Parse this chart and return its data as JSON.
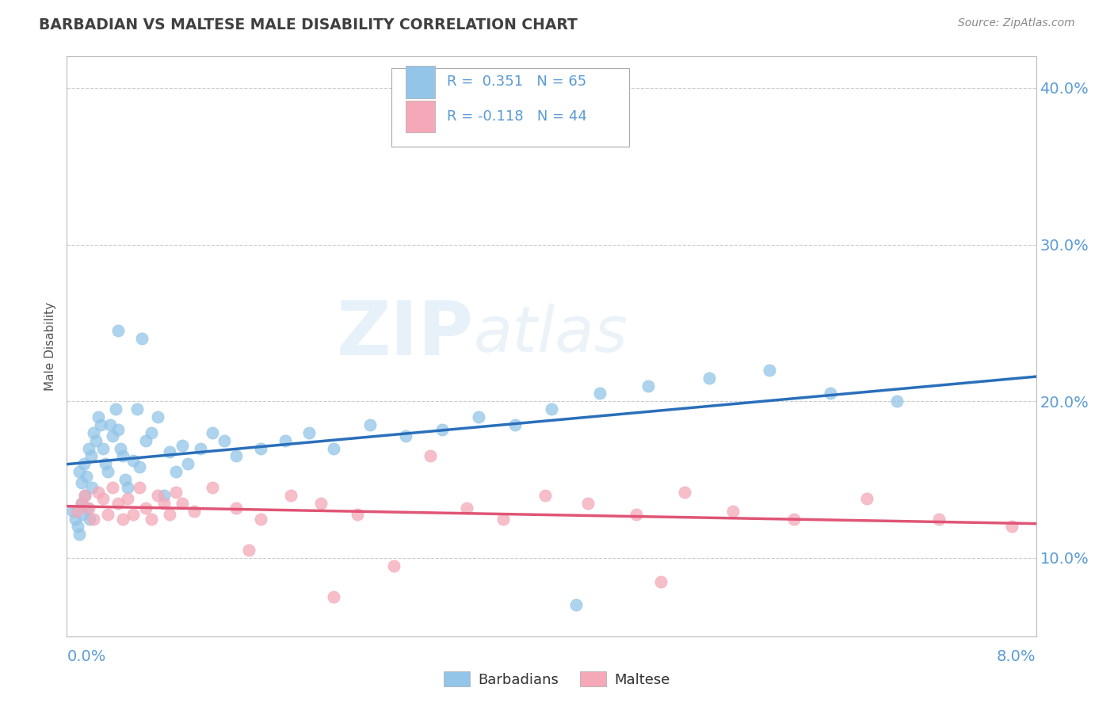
{
  "title": "BARBADIAN VS MALTESE MALE DISABILITY CORRELATION CHART",
  "source": "Source: ZipAtlas.com",
  "ylabel": "Male Disability",
  "xlim": [
    0.0,
    8.0
  ],
  "ylim": [
    5.0,
    42.0
  ],
  "yticks": [
    10.0,
    20.0,
    30.0,
    40.0
  ],
  "barbadian_color": "#92c5e8",
  "maltese_color": "#f4a8b8",
  "regression_blue": "#2a6fba",
  "regression_pink": "#e05575",
  "legend_R1": "R =  0.351",
  "legend_N1": "N = 65",
  "legend_R2": "R = -0.118",
  "legend_N2": "N = 44",
  "watermark_zip": "ZIP",
  "watermark_atlas": "atlas",
  "background_color": "#ffffff",
  "grid_color": "#cccccc",
  "barbadian_x": [
    0.05,
    0.07,
    0.09,
    0.1,
    0.12,
    0.13,
    0.15,
    0.17,
    0.19,
    0.21,
    0.1,
    0.12,
    0.14,
    0.16,
    0.18,
    0.2,
    0.22,
    0.24,
    0.26,
    0.28,
    0.3,
    0.32,
    0.34,
    0.36,
    0.38,
    0.4,
    0.42,
    0.44,
    0.46,
    0.48,
    0.5,
    0.55,
    0.6,
    0.65,
    0.7,
    0.75,
    0.8,
    0.85,
    0.9,
    0.95,
    1.0,
    1.1,
    1.2,
    1.3,
    1.4,
    1.6,
    1.8,
    2.0,
    2.2,
    2.5,
    2.8,
    3.1,
    3.4,
    3.7,
    4.0,
    4.4,
    4.8,
    5.3,
    5.8,
    6.3,
    6.85,
    4.2,
    0.62,
    0.58,
    0.42
  ],
  "barbadian_y": [
    13.0,
    12.5,
    12.0,
    11.5,
    13.5,
    12.8,
    14.0,
    13.2,
    12.5,
    14.5,
    15.5,
    14.8,
    16.0,
    15.2,
    17.0,
    16.5,
    18.0,
    17.5,
    19.0,
    18.5,
    17.0,
    16.0,
    15.5,
    18.5,
    17.8,
    19.5,
    18.2,
    17.0,
    16.5,
    15.0,
    14.5,
    16.2,
    15.8,
    17.5,
    18.0,
    19.0,
    14.0,
    16.8,
    15.5,
    17.2,
    16.0,
    17.0,
    18.0,
    17.5,
    16.5,
    17.0,
    17.5,
    18.0,
    17.0,
    18.5,
    17.8,
    18.2,
    19.0,
    18.5,
    19.5,
    20.5,
    21.0,
    21.5,
    22.0,
    20.5,
    20.0,
    7.0,
    24.0,
    19.5,
    24.5
  ],
  "maltese_x": [
    0.08,
    0.12,
    0.15,
    0.18,
    0.22,
    0.26,
    0.3,
    0.34,
    0.38,
    0.42,
    0.46,
    0.5,
    0.55,
    0.6,
    0.65,
    0.7,
    0.75,
    0.8,
    0.85,
    0.9,
    0.95,
    1.05,
    1.2,
    1.4,
    1.6,
    1.85,
    2.1,
    2.4,
    2.7,
    3.0,
    3.3,
    3.6,
    3.95,
    4.3,
    4.7,
    5.1,
    5.5,
    6.0,
    6.6,
    7.2,
    7.8,
    4.9,
    2.2,
    1.5
  ],
  "maltese_y": [
    13.0,
    13.5,
    14.0,
    13.2,
    12.5,
    14.2,
    13.8,
    12.8,
    14.5,
    13.5,
    12.5,
    13.8,
    12.8,
    14.5,
    13.2,
    12.5,
    14.0,
    13.5,
    12.8,
    14.2,
    13.5,
    13.0,
    14.5,
    13.2,
    12.5,
    14.0,
    13.5,
    12.8,
    9.5,
    16.5,
    13.2,
    12.5,
    14.0,
    13.5,
    12.8,
    14.2,
    13.0,
    12.5,
    13.8,
    12.5,
    12.0,
    8.5,
    7.5,
    10.5
  ]
}
